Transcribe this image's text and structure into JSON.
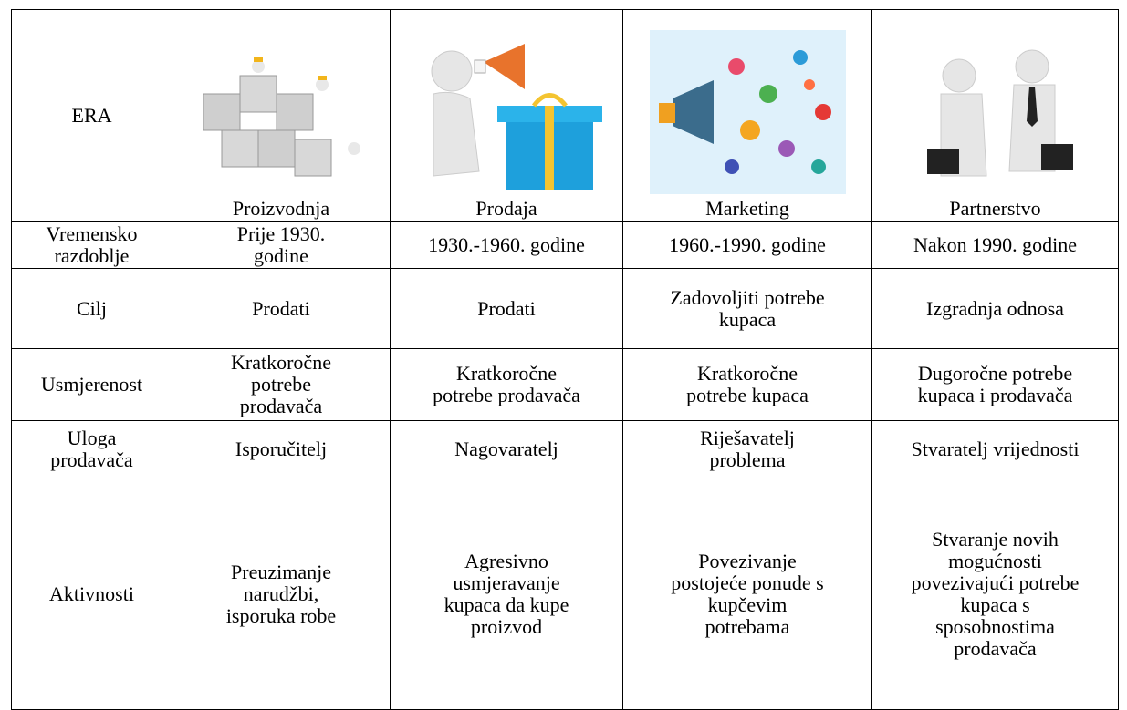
{
  "table": {
    "header": [
      "ERA",
      "Proizvodnja",
      "Prodaja",
      "Marketing",
      "Partnerstvo"
    ],
    "rows": [
      {
        "label": [
          "Vremensko",
          "razdoblje"
        ],
        "cells": [
          [
            "Prije 1930.",
            "godine"
          ],
          [
            "1930.-1960. godine"
          ],
          [
            "1960.-1990. godine"
          ],
          [
            "Nakon 1990. godine"
          ]
        ]
      },
      {
        "label": [
          "Cilj"
        ],
        "cells": [
          [
            "Prodati"
          ],
          [
            "Prodati"
          ],
          [
            "Zadovoljiti potrebe",
            "kupaca"
          ],
          [
            "Izgradnja odnosa"
          ]
        ]
      },
      {
        "label": [
          "Usmjerenost"
        ],
        "cells": [
          [
            "Kratkoročne",
            "potrebe",
            "prodavača"
          ],
          [
            "Kratkoročne",
            "potrebe prodavača"
          ],
          [
            "Kratkoročne",
            "potrebe kupaca"
          ],
          [
            "Dugoročne potrebe",
            "kupaca i prodavača"
          ]
        ]
      },
      {
        "label": [
          "Uloga",
          "prodavača"
        ],
        "cells": [
          [
            "Isporučitelj"
          ],
          [
            "Nagovaratelj"
          ],
          [
            "Riješavatelj",
            "problema"
          ],
          [
            "Stvaratelj vrijednosti"
          ]
        ]
      },
      {
        "label": [
          "Aktivnosti"
        ],
        "cells": [
          [
            "Preuzimanje",
            "narudžbi,",
            "isporuka robe"
          ],
          [
            "Agresivno",
            "usmjeravanje",
            "kupaca da kupe",
            "proizvod"
          ],
          [
            "Povezivanje",
            "postojeće ponude s",
            "kupčevim",
            "potrebama"
          ],
          [
            "Stvaranje novih",
            "mogućnosti",
            "povezivajući potrebe",
            "kupaca s",
            "sposobnostima",
            "prodavača"
          ]
        ]
      }
    ]
  }
}
